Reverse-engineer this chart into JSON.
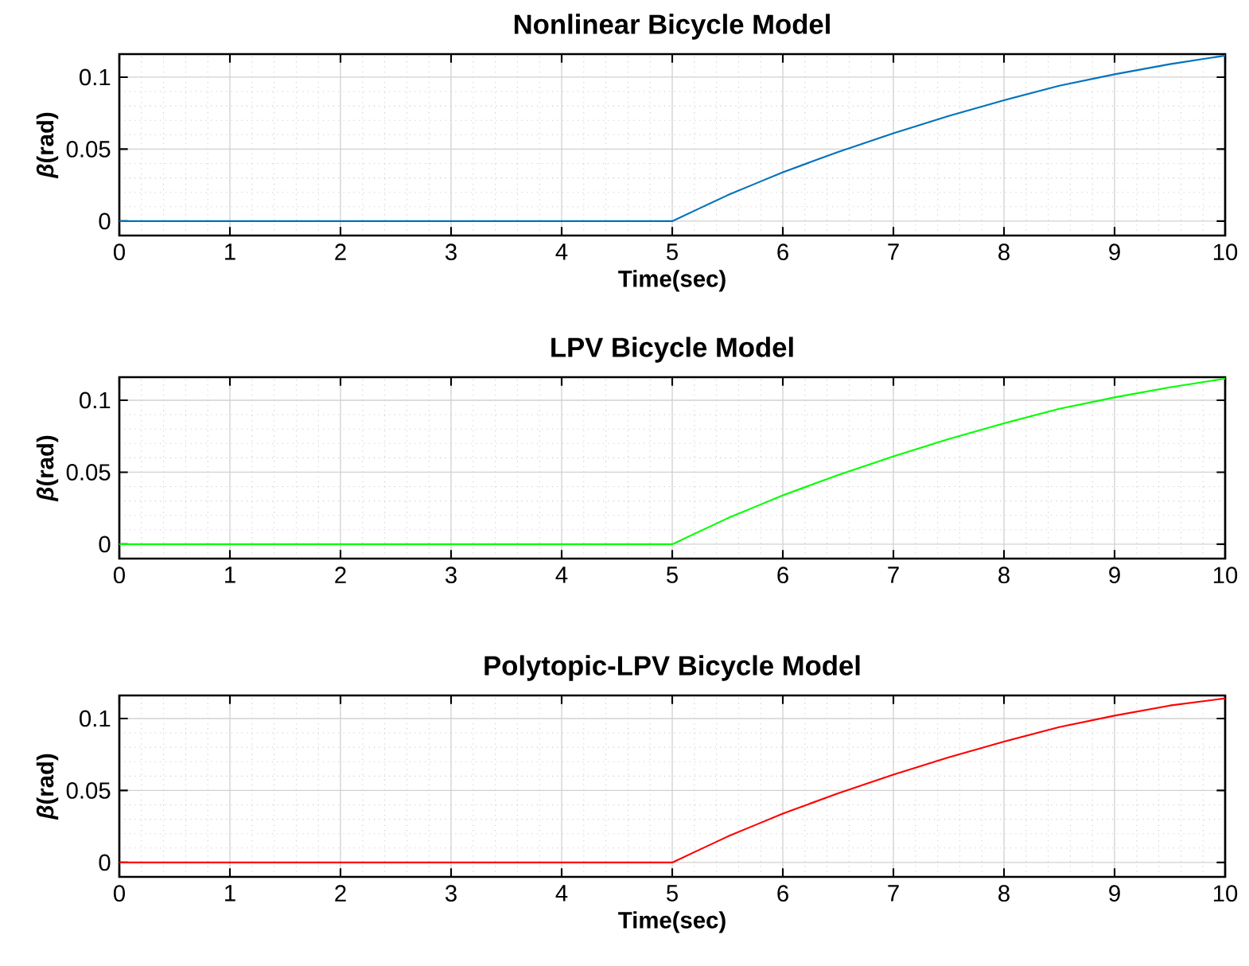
{
  "chart_data": [
    {
      "type": "line",
      "title": "Nonlinear Bicycle Model",
      "xlabel": "Time(sec)",
      "ylabel": "*β*(rad)",
      "x": [
        0,
        1,
        2,
        3,
        4,
        5,
        5.25,
        5.5,
        5.75,
        6,
        6.5,
        7,
        7.5,
        8,
        8.5,
        9,
        9.5,
        10
      ],
      "series": [
        {
          "color": "#0072bd",
          "values": [
            0,
            0,
            0,
            0,
            0,
            0,
            0.009,
            0.018,
            0.026,
            0.034,
            0.048,
            0.061,
            0.073,
            0.084,
            0.094,
            0.102,
            0.109,
            0.115
          ]
        }
      ],
      "xlim": [
        0,
        10
      ],
      "ylim": [
        -0.01,
        0.116
      ],
      "xticks": [
        0,
        1,
        2,
        3,
        4,
        5,
        6,
        7,
        8,
        9,
        10
      ],
      "yticks": [
        0,
        0.05,
        0.1
      ],
      "grid": true
    },
    {
      "type": "line",
      "title": "LPV Bicycle Model",
      "ylabel": "*β*(rad)",
      "x": [
        0,
        1,
        2,
        3,
        4,
        5,
        5.25,
        5.5,
        5.75,
        6,
        6.5,
        7,
        7.5,
        8,
        8.5,
        9,
        9.5,
        10
      ],
      "series": [
        {
          "color": "#00ff00",
          "values": [
            0,
            0,
            0,
            0,
            0,
            0,
            0.009,
            0.018,
            0.026,
            0.034,
            0.048,
            0.061,
            0.073,
            0.084,
            0.094,
            0.102,
            0.109,
            0.115
          ]
        }
      ],
      "xlim": [
        0,
        10
      ],
      "ylim": [
        -0.01,
        0.116
      ],
      "xticks": [
        0,
        1,
        2,
        3,
        4,
        5,
        6,
        7,
        8,
        9,
        10
      ],
      "yticks": [
        0,
        0.05,
        0.1
      ],
      "grid": true
    },
    {
      "type": "line",
      "title": "Polytopic-LPV Bicycle Model",
      "xlabel": "Time(sec)",
      "ylabel": "*β*(rad)",
      "x": [
        0,
        1,
        2,
        3,
        4,
        5,
        5.25,
        5.5,
        5.75,
        6,
        6.5,
        7,
        7.5,
        8,
        8.5,
        9,
        9.5,
        10
      ],
      "series": [
        {
          "color": "#ff0000",
          "values": [
            0,
            0,
            0,
            0,
            0,
            0,
            0.009,
            0.018,
            0.026,
            0.034,
            0.048,
            0.061,
            0.073,
            0.084,
            0.094,
            0.102,
            0.109,
            0.114
          ]
        }
      ],
      "xlim": [
        0,
        10
      ],
      "ylim": [
        -0.01,
        0.116
      ],
      "xticks": [
        0,
        1,
        2,
        3,
        4,
        5,
        6,
        7,
        8,
        9,
        10
      ],
      "yticks": [
        0,
        0.05,
        0.1
      ],
      "grid": true
    }
  ]
}
